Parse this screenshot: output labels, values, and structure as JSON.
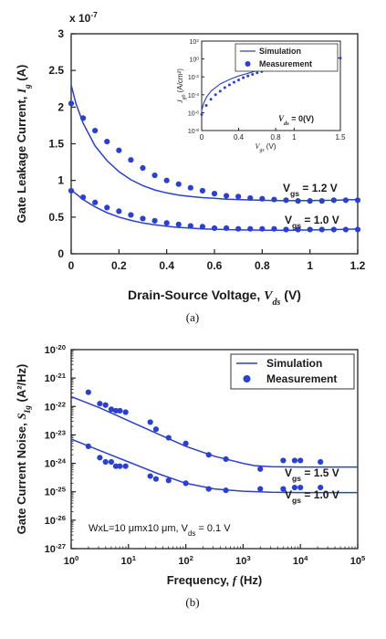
{
  "chart_data": [
    {
      "type": "line",
      "panel_label": "(a)",
      "xlabel_text": "Drain-Source Voltage,",
      "xlabel_var": "V",
      "xlabel_sub": "ds",
      "xlabel_unit": "(V)",
      "ylabel_text": "Gate Leakage Current,",
      "ylabel_var": "I",
      "ylabel_sub": "g",
      "ylabel_unit": "(A)",
      "y_multiplier": "x 10",
      "y_multiplier_exp": "-7",
      "xlim": [
        0,
        1.2
      ],
      "ylim": [
        0,
        3
      ],
      "x_ticks": [
        "0",
        "0.2",
        "0.4",
        "0.6",
        "0.8",
        "1",
        "1.2"
      ],
      "y_ticks": [
        "0",
        "0.5",
        "1",
        "1.5",
        "2",
        "2.5",
        "3"
      ],
      "legend": [
        "Simulation",
        "Measurement"
      ],
      "series": [
        {
          "label_text": "V",
          "label_sub": "gs",
          "label_val": "= 1.2 V",
          "simulation": {
            "x": [
              0,
              0.02,
              0.05,
              0.1,
              0.15,
              0.2,
              0.25,
              0.3,
              0.35,
              0.4,
              0.45,
              0.5,
              0.55,
              0.6,
              0.65,
              0.7,
              0.75,
              0.8,
              0.85,
              0.9,
              0.95,
              1.0,
              1.05,
              1.1,
              1.15,
              1.2
            ],
            "y": [
              2.3,
              2.05,
              1.78,
              1.47,
              1.27,
              1.12,
              1.01,
              0.93,
              0.87,
              0.83,
              0.8,
              0.78,
              0.765,
              0.755,
              0.745,
              0.74,
              0.735,
              0.73,
              0.725,
              0.725,
              0.725,
              0.725,
              0.728,
              0.73,
              0.735,
              0.74
            ]
          },
          "measurement": {
            "x": [
              0,
              0.05,
              0.1,
              0.15,
              0.2,
              0.25,
              0.3,
              0.35,
              0.4,
              0.45,
              0.5,
              0.55,
              0.6,
              0.65,
              0.7,
              0.75,
              0.8,
              0.85,
              0.9,
              0.95,
              1.0,
              1.05,
              1.1,
              1.15,
              1.2
            ],
            "y": [
              2.05,
              1.85,
              1.68,
              1.53,
              1.41,
              1.28,
              1.17,
              1.07,
              1.0,
              0.95,
              0.9,
              0.86,
              0.82,
              0.79,
              0.78,
              0.76,
              0.75,
              0.74,
              0.73,
              0.72,
              0.72,
              0.72,
              0.73,
              0.73,
              0.73
            ]
          }
        },
        {
          "label_text": "V",
          "label_sub": "gs",
          "label_val": "= 1.0 V",
          "simulation": {
            "x": [
              0,
              0.05,
              0.1,
              0.15,
              0.2,
              0.25,
              0.3,
              0.35,
              0.4,
              0.45,
              0.5,
              0.55,
              0.6,
              0.65,
              0.7,
              0.75,
              0.8,
              0.85,
              0.9,
              0.95,
              1.0,
              1.05,
              1.1,
              1.15,
              1.2
            ],
            "y": [
              0.87,
              0.74,
              0.64,
              0.56,
              0.5,
              0.455,
              0.42,
              0.395,
              0.375,
              0.36,
              0.35,
              0.34,
              0.335,
              0.33,
              0.325,
              0.325,
              0.32,
              0.32,
              0.32,
              0.322,
              0.325,
              0.327,
              0.33,
              0.333,
              0.337
            ]
          },
          "measurement": {
            "x": [
              0,
              0.05,
              0.1,
              0.15,
              0.2,
              0.25,
              0.3,
              0.35,
              0.4,
              0.45,
              0.5,
              0.55,
              0.6,
              0.65,
              0.7,
              0.75,
              0.8,
              0.85,
              0.9,
              0.95,
              1.0,
              1.05,
              1.1,
              1.15,
              1.2
            ],
            "y": [
              0.86,
              0.77,
              0.7,
              0.63,
              0.58,
              0.53,
              0.48,
              0.45,
              0.42,
              0.4,
              0.38,
              0.37,
              0.35,
              0.35,
              0.34,
              0.34,
              0.34,
              0.34,
              0.33,
              0.33,
              0.33,
              0.33,
              0.33,
              0.33,
              0.33
            ]
          }
        }
      ],
      "inset": {
        "ylabel_var": "J",
        "ylabel_sub": "g0",
        "ylabel_unit": "(A/cm²)",
        "xlabel_var": "V",
        "xlabel_sub": "gs",
        "xlabel_unit": "(V)",
        "annotation_var": "V",
        "annotation_sub": "ds",
        "annotation_val": "= 0(V)",
        "xlim": [
          0,
          1.5
        ],
        "ylim_log10": [
          -8,
          2
        ],
        "x_ticks": [
          "0",
          "0.4",
          "0.8",
          "1",
          "1.5"
        ],
        "y_tick_exps": [
          "2",
          "0",
          "-2",
          "-4",
          "-6",
          "-8"
        ],
        "y_tick_base": "10",
        "simulation": {
          "x": [
            0,
            0.02,
            0.05,
            0.1,
            0.2,
            0.3,
            0.4,
            0.5,
            0.6,
            0.7,
            0.8,
            0.9,
            1.0,
            1.1,
            1.2,
            1.3,
            1.4,
            1.5
          ],
          "log10y": [
            -5.8,
            -5.0,
            -4.3,
            -3.6,
            -2.8,
            -2.3,
            -1.9,
            -1.6,
            -1.3,
            -1.05,
            -0.8,
            -0.6,
            -0.45,
            -0.3,
            -0.15,
            -0.05,
            0.05,
            0.12
          ]
        },
        "measurement": {
          "x": [
            0,
            0.05,
            0.1,
            0.15,
            0.2,
            0.25,
            0.3,
            0.35,
            0.4,
            0.45,
            0.5,
            0.55,
            0.6,
            0.65,
            0.7,
            0.75,
            0.8,
            0.85,
            0.9,
            0.95,
            1.0,
            1.05,
            1.1,
            1.15,
            1.2,
            1.25,
            1.3,
            1.35,
            1.4,
            1.45,
            1.5
          ],
          "log10y": [
            -6.2,
            -5.2,
            -4.5,
            -4.0,
            -3.6,
            -3.2,
            -2.9,
            -2.6,
            -2.35,
            -2.1,
            -1.9,
            -1.72,
            -1.55,
            -1.4,
            -1.25,
            -1.12,
            -1.0,
            -0.88,
            -0.77,
            -0.67,
            -0.57,
            -0.48,
            -0.4,
            -0.32,
            -0.25,
            -0.18,
            -0.12,
            -0.06,
            0.0,
            0.05,
            0.1
          ]
        }
      }
    },
    {
      "type": "line",
      "panel_label": "(b)",
      "xlabel_text": "Frequency,",
      "xlabel_var": "f",
      "xlabel_unit": "(Hz)",
      "ylabel_text": "Gate Current Noise,",
      "ylabel_var": "S",
      "ylabel_sub": "Ig",
      "ylabel_unit": "(A²/Hz)",
      "x_log10_range": [
        0,
        5
      ],
      "y_log10_range": [
        -27,
        -20
      ],
      "x_tick_exps": [
        "0",
        "1",
        "2",
        "3",
        "4",
        "5"
      ],
      "y_tick_exps": [
        "-20",
        "-21",
        "-22",
        "-23",
        "-24",
        "-25",
        "-26",
        "-27"
      ],
      "tick_base": "10",
      "legend": [
        "Simulation",
        "Measurement"
      ],
      "annotation": "WxL=10 μmx10 μm, V",
      "annotation_sub": "ds",
      "annotation_val": "= 0.1 V",
      "series": [
        {
          "label_text": "V",
          "label_sub": "gs",
          "label_val": "= 1.5 V",
          "simulation": {
            "log10x": [
              0,
              0.5,
              1,
              1.5,
              2,
              2.5,
              3,
              3.2,
              3.5,
              4,
              4.5,
              5
            ],
            "log10y": [
              -21.65,
              -22.05,
              -22.5,
              -22.95,
              -23.4,
              -23.75,
              -24.0,
              -24.08,
              -24.12,
              -24.13,
              -24.13,
              -24.13
            ]
          },
          "measurement": {
            "log10x": [
              0.3,
              0.5,
              0.6,
              0.7,
              0.78,
              0.85,
              0.95,
              1.38,
              1.48,
              1.7,
              2.0,
              2.4,
              2.7,
              3.3,
              3.7,
              3.9,
              4.0,
              4.35
            ],
            "log10y": [
              -21.5,
              -21.9,
              -21.95,
              -22.1,
              -22.15,
              -22.15,
              -22.2,
              -22.55,
              -22.8,
              -23.1,
              -23.3,
              -23.7,
              -23.85,
              -24.2,
              -23.9,
              -23.9,
              -23.9,
              -23.95
            ]
          }
        },
        {
          "label_text": "V",
          "label_sub": "gs",
          "label_val": "= 1.0 V",
          "simulation": {
            "log10x": [
              0,
              0.5,
              1,
              1.5,
              2,
              2.5,
              3,
              3.5,
              4,
              4.5,
              5
            ],
            "log10y": [
              -23.15,
              -23.55,
              -23.95,
              -24.35,
              -24.7,
              -24.9,
              -24.98,
              -25.02,
              -25.03,
              -25.03,
              -25.03
            ]
          },
          "measurement": {
            "log10x": [
              0.3,
              0.5,
              0.6,
              0.7,
              0.78,
              0.85,
              0.95,
              1.38,
              1.48,
              1.7,
              2.0,
              2.4,
              2.7,
              3.3,
              3.7,
              3.9,
              4.0,
              4.35
            ],
            "log10y": [
              -23.4,
              -23.8,
              -23.95,
              -23.95,
              -24.1,
              -24.1,
              -24.1,
              -24.45,
              -24.55,
              -24.6,
              -24.7,
              -24.9,
              -24.95,
              -24.9,
              -24.9,
              -24.85,
              -24.85,
              -24.85
            ]
          }
        }
      ]
    }
  ]
}
